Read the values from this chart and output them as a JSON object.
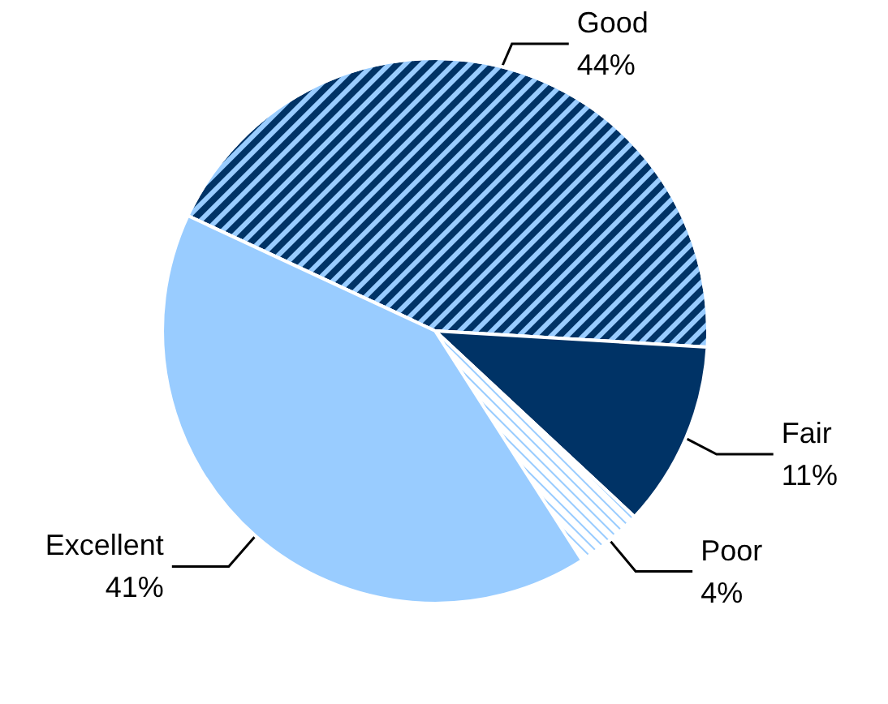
{
  "chart_data": {
    "type": "pie",
    "categories": [
      "Good",
      "Fair",
      "Poor",
      "Excellent"
    ],
    "values": [
      44,
      11,
      4,
      41
    ],
    "colors": [
      "#003366",
      "#003366",
      "#ffffff",
      "#99ccff"
    ],
    "value_labels": [
      "44%",
      "11%",
      "4%",
      "41%"
    ],
    "legend": false
  }
}
